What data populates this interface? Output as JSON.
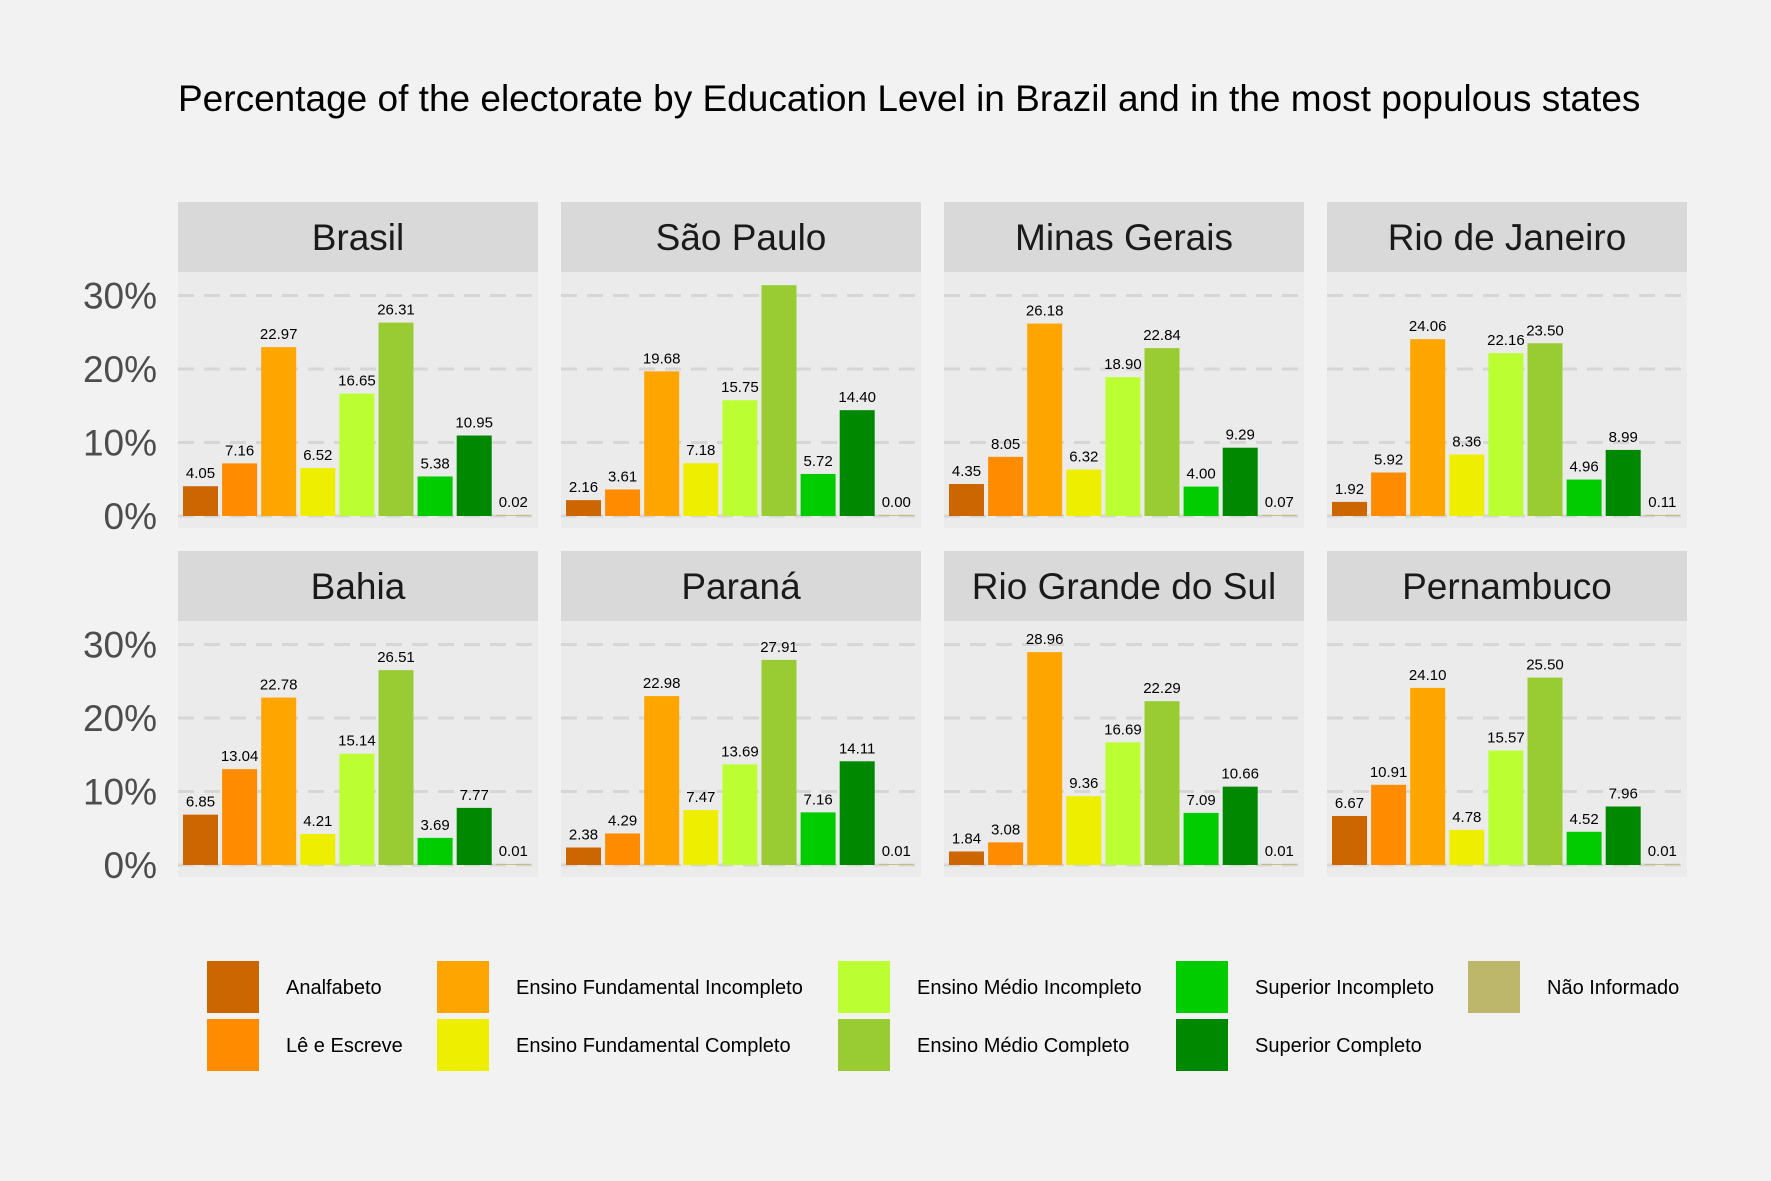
{
  "chart_data": {
    "type": "bar",
    "title": "Percentage of the electorate by Education Level in Brazil and in the most populous states",
    "xlabel": "",
    "ylabel": "",
    "ylim": [
      0,
      32.5
    ],
    "yticks": [
      "0%",
      "10%",
      "20%",
      "30%"
    ],
    "grid": true,
    "legend_position": "bottom",
    "categories": [
      "Analfabeto",
      "Lê e Escreve",
      "Ensino Fundamental Incompleto",
      "Ensino Fundamental Completo",
      "Ensino Médio Incompleto",
      "Ensino Médio Completo",
      "Superior Incompleto",
      "Superior Completo",
      "Não Informado"
    ],
    "colors": [
      "#cc6600",
      "#ff8c00",
      "#ffa500",
      "#eeee00",
      "#bbff33",
      "#99cc33",
      "#00cc00",
      "#008800",
      "#bdb76b"
    ],
    "legend_order": [
      0,
      2,
      4,
      6,
      8,
      1,
      3,
      5,
      7
    ],
    "panels": [
      {
        "name": "Brasil",
        "values": [
          4.05,
          7.16,
          22.97,
          6.52,
          16.65,
          26.31,
          5.38,
          10.95,
          0.02
        ],
        "labels": [
          "4.05",
          "7.16",
          "22.97",
          "6.52",
          "16.65",
          "26.31",
          "5.38",
          "10.95",
          "0.02"
        ]
      },
      {
        "name": "São Paulo",
        "values": [
          2.16,
          3.61,
          19.68,
          7.18,
          15.75,
          31.4,
          5.72,
          14.4,
          0.0
        ],
        "labels": [
          "2.16",
          "3.61",
          "19.68",
          "7.18",
          "15.75",
          "",
          "5.72",
          "14.40",
          "0.00"
        ]
      },
      {
        "name": "Minas Gerais",
        "values": [
          4.35,
          8.05,
          26.18,
          6.32,
          18.9,
          22.84,
          4.0,
          9.29,
          0.07
        ],
        "labels": [
          "4.35",
          "8.05",
          "26.18",
          "6.32",
          "18.90",
          "22.84",
          "4.00",
          "9.29",
          "0.07"
        ]
      },
      {
        "name": "Rio de Janeiro",
        "values": [
          1.92,
          5.92,
          24.06,
          8.36,
          22.16,
          23.5,
          4.96,
          8.99,
          0.11
        ],
        "labels": [
          "1.92",
          "5.92",
          "24.06",
          "8.36",
          "22.16",
          "23.50",
          "4.96",
          "8.99",
          "0.11"
        ]
      },
      {
        "name": "Bahia",
        "values": [
          6.85,
          13.04,
          22.78,
          4.21,
          15.14,
          26.51,
          3.69,
          7.77,
          0.01
        ],
        "labels": [
          "6.85",
          "13.04",
          "22.78",
          "4.21",
          "15.14",
          "26.51",
          "3.69",
          "7.77",
          "0.01"
        ]
      },
      {
        "name": "Paraná",
        "values": [
          2.38,
          4.29,
          22.98,
          7.47,
          13.69,
          27.91,
          7.16,
          14.11,
          0.01
        ],
        "labels": [
          "2.38",
          "4.29",
          "22.98",
          "7.47",
          "13.69",
          "27.91",
          "7.16",
          "14.11",
          "0.01"
        ]
      },
      {
        "name": "Rio Grande do Sul",
        "values": [
          1.84,
          3.08,
          28.96,
          9.36,
          16.69,
          22.29,
          7.09,
          10.66,
          0.01
        ],
        "labels": [
          "1.84",
          "3.08",
          "28.96",
          "9.36",
          "16.69",
          "22.29",
          "7.09",
          "10.66",
          "0.01"
        ]
      },
      {
        "name": "Pernambuco",
        "values": [
          6.67,
          10.91,
          24.1,
          4.78,
          15.57,
          25.5,
          4.52,
          7.96,
          0.01
        ],
        "labels": [
          "6.67",
          "10.91",
          "24.10",
          "4.78",
          "15.57",
          "25.50",
          "4.52",
          "7.96",
          "0.01"
        ]
      }
    ]
  }
}
